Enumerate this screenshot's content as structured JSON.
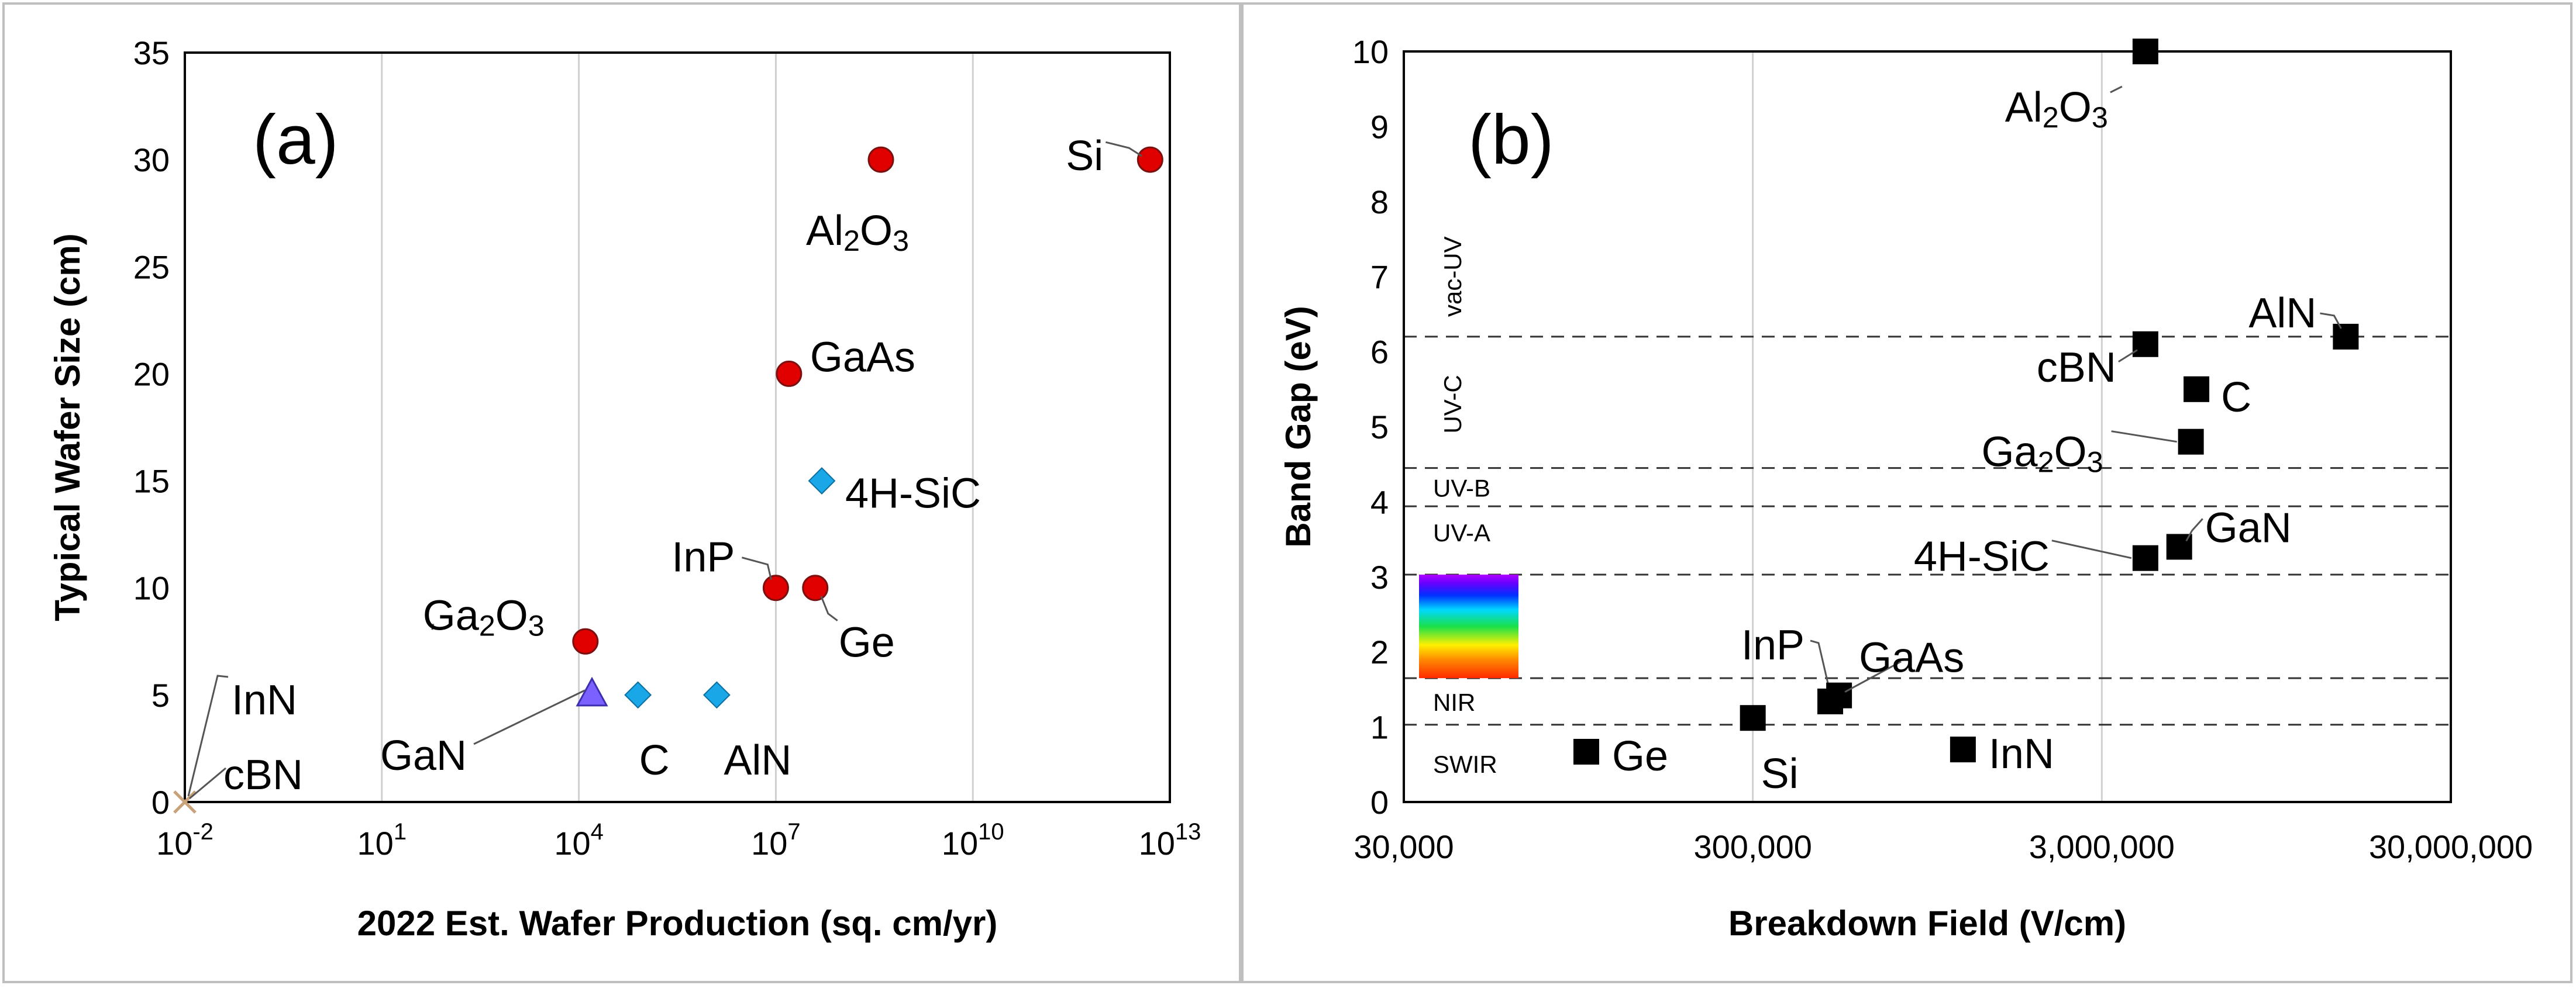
{
  "chart_data": [
    {
      "id": "a",
      "type": "scatter",
      "panel_label": "(a)",
      "xlabel": "2022 Est. Wafer Production (sq. cm/yr)",
      "ylabel": "Typical Wafer Size (cm)",
      "xscale": "log",
      "xlim_log10": [
        -2,
        13
      ],
      "ylim": [
        0,
        35
      ],
      "yticks": [
        0,
        5,
        10,
        15,
        20,
        25,
        30,
        35
      ],
      "xticks": [
        {
          "base": "10",
          "exp": "-2",
          "log": -2
        },
        {
          "base": "10",
          "exp": "1",
          "log": 1
        },
        {
          "base": "10",
          "exp": "4",
          "log": 4
        },
        {
          "base": "10",
          "exp": "7",
          "log": 7
        },
        {
          "base": "10",
          "exp": "10",
          "log": 10
        },
        {
          "base": "10",
          "exp": "13",
          "log": 13
        }
      ],
      "points": [
        {
          "label": "Si",
          "log_x": 12.7,
          "y": 30,
          "marker": "circle",
          "color": "#e00000"
        },
        {
          "label": "Al2O3",
          "log_x": 8.6,
          "y": 30,
          "marker": "circle",
          "color": "#e00000"
        },
        {
          "label": "GaAs",
          "log_x": 7.2,
          "y": 20,
          "marker": "circle",
          "color": "#e00000"
        },
        {
          "label": "4H-SiC",
          "log_x": 7.7,
          "y": 15,
          "marker": "diamond",
          "color": "#1aa7e8"
        },
        {
          "label": "InP",
          "log_x": 7.0,
          "y": 10,
          "marker": "circle",
          "color": "#e00000"
        },
        {
          "label": "Ge",
          "log_x": 7.6,
          "y": 10,
          "marker": "circle",
          "color": "#e00000"
        },
        {
          "label": "Ga2O3",
          "log_x": 4.1,
          "y": 7.5,
          "marker": "circle",
          "color": "#e00000"
        },
        {
          "label": "GaN",
          "log_x": 4.2,
          "y": 5,
          "marker": "triangle",
          "color": "#7b61ff"
        },
        {
          "label": "C",
          "log_x": 4.9,
          "y": 5,
          "marker": "diamond",
          "color": "#1aa7e8"
        },
        {
          "label": "AlN",
          "log_x": 6.1,
          "y": 5,
          "marker": "diamond",
          "color": "#1aa7e8"
        },
        {
          "label": "InN",
          "log_x": -2,
          "y": 0,
          "marker": "cross",
          "color": "#c9a27a"
        },
        {
          "label": "cBN",
          "log_x": -2,
          "y": 0,
          "marker": "cross",
          "color": "#c9a27a"
        }
      ]
    },
    {
      "id": "b",
      "type": "scatter",
      "panel_label": "(b)",
      "xlabel": "Breakdown Field (V/cm)",
      "ylabel": "Band Gap (eV)",
      "xscale": "log",
      "xlim": [
        30000,
        30000000
      ],
      "ylim": [
        0,
        10
      ],
      "yticks": [
        0,
        1,
        2,
        3,
        4,
        5,
        6,
        7,
        8,
        9,
        10
      ],
      "xticks": [
        {
          "label": "30,000",
          "value": 30000
        },
        {
          "label": "300,000",
          "value": 300000
        },
        {
          "label": "3,000,000",
          "value": 3000000
        },
        {
          "label": "30,000,000",
          "value": 30000000
        }
      ],
      "points": [
        {
          "label": "Al2O3",
          "x": 4000000,
          "y": 10
        },
        {
          "label": "AlN",
          "x": 15000000,
          "y": 6.2
        },
        {
          "label": "cBN",
          "x": 4000000,
          "y": 6.1
        },
        {
          "label": "C",
          "x": 5600000,
          "y": 5.5
        },
        {
          "label": "Ga2O3",
          "x": 5400000,
          "y": 4.8
        },
        {
          "label": "GaN",
          "x": 5000000,
          "y": 3.4
        },
        {
          "label": "4H-SiC",
          "x": 4000000,
          "y": 3.25
        },
        {
          "label": "InP",
          "x": 500000,
          "y": 1.34
        },
        {
          "label": "GaAs",
          "x": 530000,
          "y": 1.42
        },
        {
          "label": "Si",
          "x": 300000,
          "y": 1.12
        },
        {
          "label": "Ge",
          "x": 100000,
          "y": 0.67
        },
        {
          "label": "InN",
          "x": 1200000,
          "y": 0.7
        }
      ],
      "bands": [
        {
          "label": "SWIR",
          "y_from": 0,
          "y_to": 1.03
        },
        {
          "label": "NIR",
          "y_from": 1.03,
          "y_to": 1.65
        },
        {
          "label": "UV-A",
          "y_from": 3.03,
          "y_to": 3.94
        },
        {
          "label": "UV-B",
          "y_from": 3.94,
          "y_to": 4.45
        },
        {
          "label": "UV-C",
          "y_from": 4.45,
          "y_to": 6.2
        },
        {
          "label": "vac-UV",
          "y_from": 6.2,
          "y_to": 10
        }
      ],
      "band_lines": [
        1.03,
        1.65,
        3.03,
        3.94,
        4.45,
        6.2
      ],
      "visible_spectrum": {
        "y_from": 1.65,
        "y_to": 3.03
      }
    }
  ]
}
